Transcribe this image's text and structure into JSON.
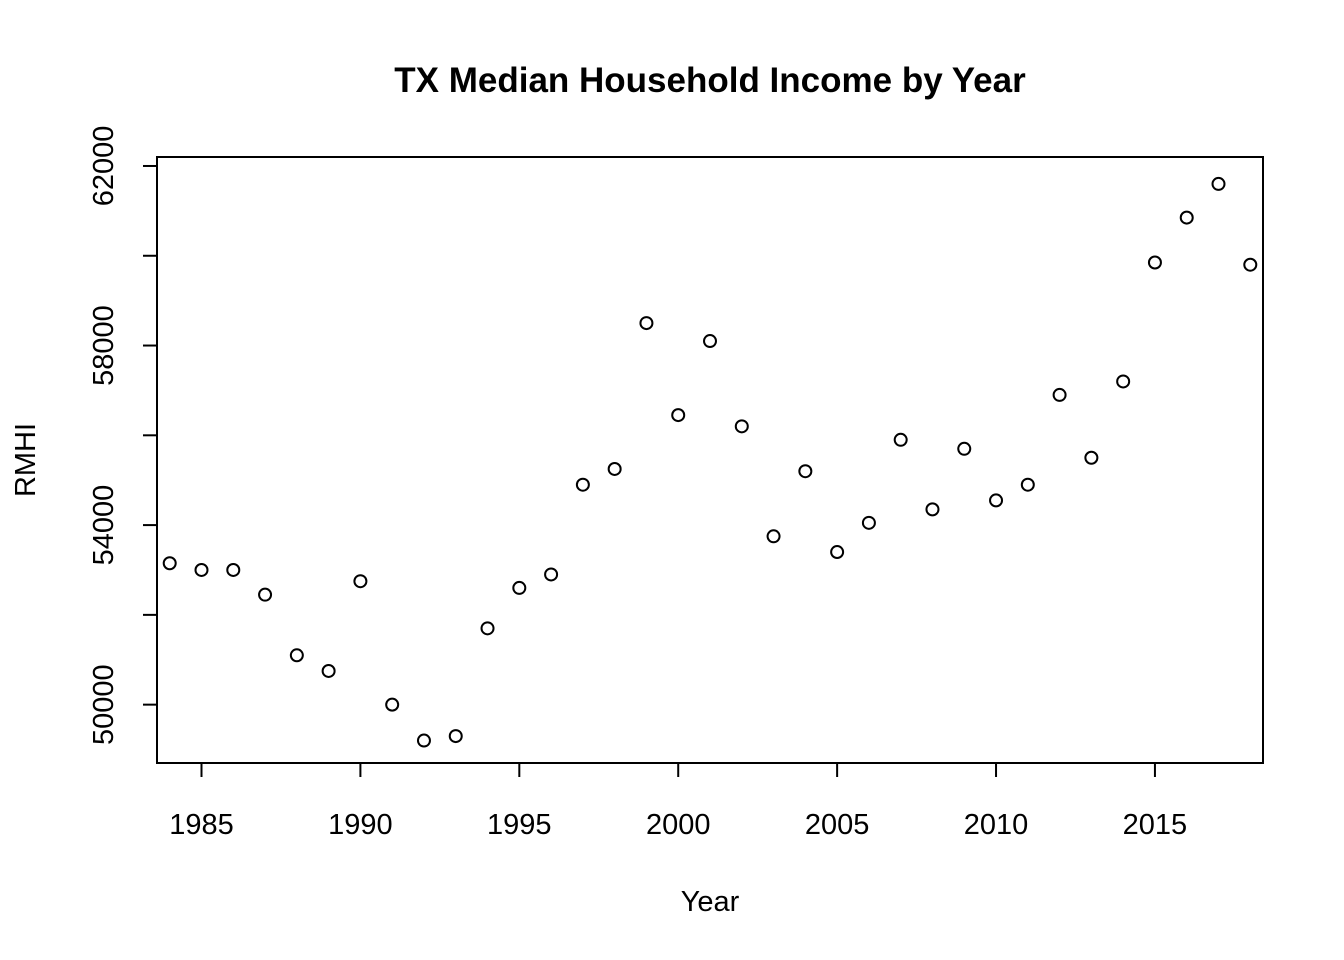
{
  "chart_data": {
    "type": "scatter",
    "title": "TX Median Household Income by Year",
    "xlabel": "Year",
    "ylabel": "RMHI",
    "xlim": [
      1983.6,
      2018.4
    ],
    "ylim": [
      48700,
      62200
    ],
    "xticks": [
      1985,
      1990,
      1995,
      2000,
      2005,
      2010,
      2015
    ],
    "yticks": [
      50000,
      52000,
      54000,
      56000,
      58000,
      60000,
      62000
    ],
    "ytick_labels": [
      "50000",
      "",
      "54000",
      "",
      "58000",
      "",
      "62000"
    ],
    "grid": false,
    "legend": "none",
    "x": [
      1984,
      1985,
      1986,
      1987,
      1988,
      1989,
      1990,
      1991,
      1992,
      1993,
      1994,
      1995,
      1996,
      1997,
      1998,
      1999,
      2000,
      2001,
      2002,
      2003,
      2004,
      2005,
      2006,
      2007,
      2008,
      2009,
      2010,
      2011,
      2012,
      2013,
      2014,
      2015,
      2016,
      2017,
      2018
    ],
    "y": [
      53150,
      53000,
      53000,
      52450,
      51100,
      50750,
      52750,
      50000,
      49200,
      49300,
      51700,
      52600,
      52900,
      54900,
      55250,
      58500,
      56450,
      58100,
      56200,
      53750,
      55200,
      53400,
      54050,
      55900,
      54350,
      55700,
      54550,
      54900,
      56900,
      55500,
      57200,
      59850,
      60850,
      61600,
      59800
    ]
  }
}
